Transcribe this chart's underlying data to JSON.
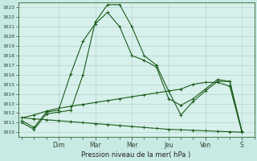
{
  "background_color": "#c8eae4",
  "plot_bg_color": "#d8f0ec",
  "grid_color": "#b0d4cc",
  "line_color": "#1a5c1a",
  "title": "Pression niveau de la mer( hPa )",
  "ylim": [
    1009.5,
    1023.5
  ],
  "yticks": [
    1010,
    1011,
    1012,
    1013,
    1014,
    1015,
    1016,
    1017,
    1018,
    1019,
    1020,
    1021,
    1022,
    1023
  ],
  "day_labels": [
    "Dim",
    "Mar",
    "Mer",
    "Jeu",
    "Ven",
    "S"
  ],
  "day_positions": [
    3.0,
    6.0,
    9.0,
    12.0,
    15.0,
    18.0
  ],
  "xlim": [
    -0.3,
    19.0
  ],
  "series": [
    {
      "x": [
        0,
        1,
        2,
        3,
        4,
        5,
        6,
        7,
        8,
        9,
        10,
        11,
        12,
        13,
        14,
        15,
        16,
        17,
        18
      ],
      "y": [
        1011,
        1010.3,
        1011.9,
        1012.1,
        1012.3,
        1016.0,
        1021.5,
        1023.3,
        1023.3,
        1021.0,
        1018.0,
        1017.0,
        1014.3,
        1011.8,
        1013.2,
        1014.3,
        1015.3,
        1015.3,
        1010.0
      ]
    },
    {
      "x": [
        0,
        1,
        2,
        3,
        4,
        5,
        6,
        7,
        8,
        9,
        10,
        11,
        12,
        13,
        14,
        15,
        16,
        17,
        18
      ],
      "y": [
        1011.2,
        1010.5,
        1012.1,
        1012.3,
        1016.1,
        1019.5,
        1021.3,
        1022.5,
        1021.0,
        1018.0,
        1017.5,
        1016.8,
        1013.5,
        1012.8,
        1013.5,
        1014.5,
        1015.5,
        1015.3,
        1010.1
      ]
    },
    {
      "x": [
        0,
        1,
        2,
        3,
        4,
        5,
        6,
        7,
        8,
        9,
        10,
        11,
        12,
        13,
        14,
        15,
        16,
        17,
        18
      ],
      "y": [
        1011.5,
        1011.8,
        1012.2,
        1012.5,
        1012.7,
        1012.9,
        1013.1,
        1013.3,
        1013.5,
        1013.7,
        1013.9,
        1014.1,
        1014.3,
        1014.5,
        1015.0,
        1015.2,
        1015.2,
        1014.8,
        1010.0
      ]
    },
    {
      "x": [
        0,
        1,
        2,
        3,
        4,
        5,
        6,
        7,
        8,
        9,
        10,
        11,
        12,
        13,
        14,
        15,
        16,
        17,
        18
      ],
      "y": [
        1011.5,
        1011.4,
        1011.3,
        1011.2,
        1011.1,
        1011.0,
        1010.9,
        1010.8,
        1010.7,
        1010.6,
        1010.5,
        1010.4,
        1010.3,
        1010.25,
        1010.2,
        1010.15,
        1010.1,
        1010.05,
        1010.0
      ]
    }
  ]
}
